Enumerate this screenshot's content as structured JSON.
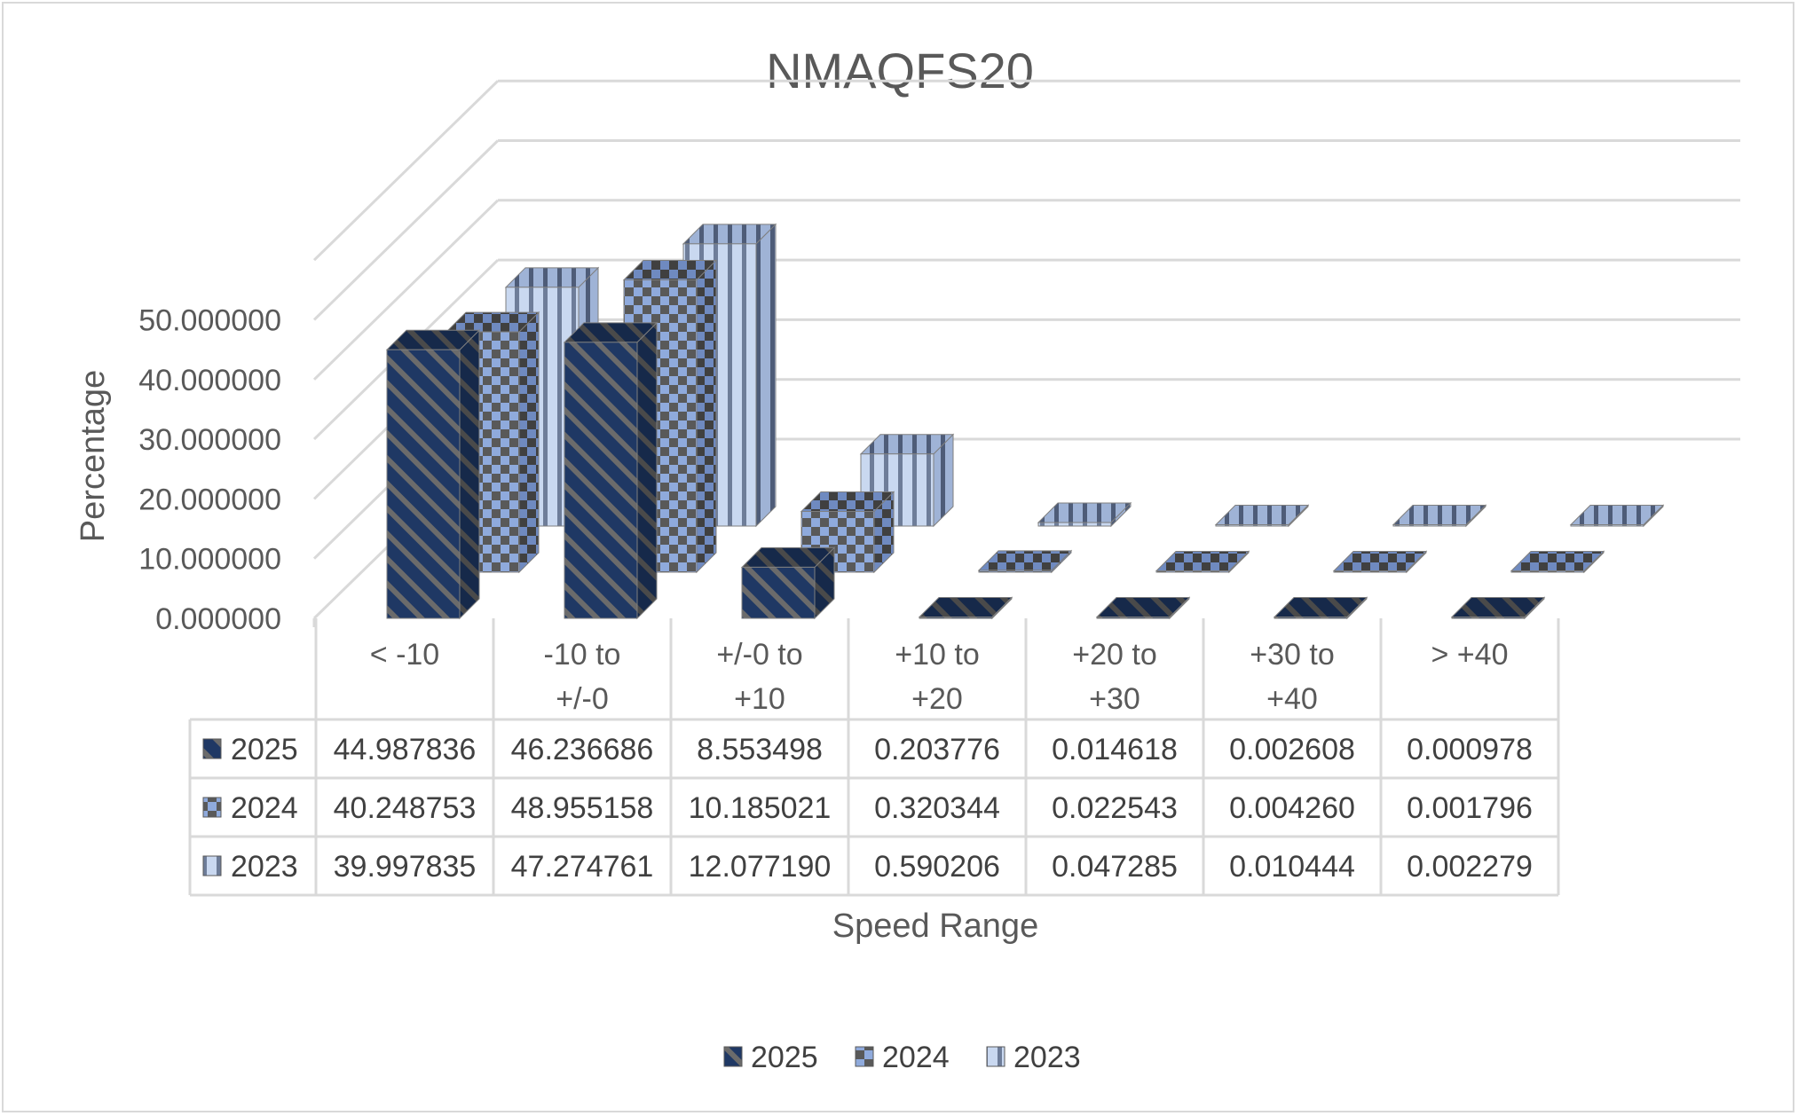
{
  "chart_data": {
    "type": "bar",
    "style": "3d-column with data table",
    "title": "NMAQFS20",
    "xlabel": "Speed Range",
    "ylabel": "Percentage",
    "ylim": [
      0,
      60
    ],
    "yticks": [
      "0.000000",
      "10.000000",
      "20.000000",
      "30.000000",
      "40.000000",
      "50.000000"
    ],
    "grid": true,
    "legend_position": "bottom",
    "categories": [
      [
        "< -10"
      ],
      [
        "-10 to",
        "+/-0"
      ],
      [
        "+/-0 to",
        "+10"
      ],
      [
        "+10 to",
        "+20"
      ],
      [
        "+20 to",
        "+30"
      ],
      [
        "+30 to",
        "+40"
      ],
      [
        "> +40"
      ]
    ],
    "series": [
      {
        "name": "2025",
        "color": "#1f3864",
        "pattern": "diagonal",
        "values": [
          44.987836,
          46.236686,
          8.553498,
          0.203776,
          0.014618,
          0.002608,
          0.000978
        ],
        "labels": [
          "44.987836",
          "46.236686",
          "8.553498",
          "0.203776",
          "0.014618",
          "0.002608",
          "0.000978"
        ]
      },
      {
        "name": "2024",
        "color": "#8faadc",
        "pattern": "checker",
        "values": [
          40.248753,
          48.955158,
          10.185021,
          0.320344,
          0.022543,
          0.00426,
          0.001796
        ],
        "labels": [
          "40.248753",
          "48.955158",
          "10.185021",
          "0.320344",
          "0.022543",
          "0.004260",
          "0.001796"
        ]
      },
      {
        "name": "2023",
        "color": "#b4c7e7",
        "pattern": "vertical",
        "values": [
          39.997835,
          47.274761,
          12.07719,
          0.590206,
          0.047285,
          0.010444,
          0.002279
        ],
        "labels": [
          "39.997835",
          "47.274761",
          "12.077190",
          "0.590206",
          "0.047285",
          "0.010444",
          "0.002279"
        ]
      }
    ]
  }
}
